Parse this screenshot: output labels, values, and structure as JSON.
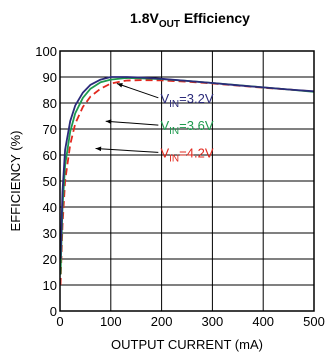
{
  "chart_data": {
    "type": "line",
    "title": {
      "pre": "1.8V",
      "sub": "OUT",
      "post": " Efficiency"
    },
    "xlabel": "OUTPUT CURRENT (mA)",
    "ylabel": "EFFICIENCY (%)",
    "xlim": [
      0,
      500
    ],
    "ylim": [
      0,
      100
    ],
    "xticks": [
      0,
      100,
      200,
      300,
      400,
      500
    ],
    "yticks": [
      0,
      10,
      20,
      30,
      40,
      50,
      60,
      70,
      80,
      90,
      100
    ],
    "grid": true,
    "series": [
      {
        "label": {
          "pre": "V",
          "sub": "IN",
          "post": "=3.2V"
        },
        "color": "#2b2a7a",
        "dash": "solid",
        "x": [
          1,
          5,
          10,
          20,
          30,
          45,
          60,
          80,
          100,
          130,
          160,
          200,
          250,
          300,
          350,
          400,
          450,
          500
        ],
        "y": [
          20,
          46,
          62,
          73,
          79,
          84,
          87,
          89,
          90,
          90,
          89.8,
          89.3,
          88.5,
          87.7,
          86.8,
          86,
          85.2,
          84.5
        ]
      },
      {
        "label": {
          "pre": "V",
          "sub": "IN",
          "post": "=3.6V"
        },
        "color": "#1e9a4e",
        "dash": "solid",
        "x": [
          1,
          5,
          10,
          20,
          30,
          45,
          60,
          80,
          100,
          130,
          160,
          200,
          250,
          300,
          350,
          400,
          450,
          500
        ],
        "y": [
          14,
          40,
          56,
          69,
          76,
          82,
          85.5,
          88,
          89,
          89.6,
          89.5,
          89.2,
          88.5,
          87.7,
          86.9,
          86,
          85.2,
          84.3
        ]
      },
      {
        "label": {
          "pre": "V",
          "sub": "IN",
          "post": "=4.2V"
        },
        "color": "#e2281e",
        "dash": "dashed",
        "x": [
          1,
          5,
          10,
          20,
          30,
          45,
          60,
          80,
          100,
          130,
          160,
          200,
          250,
          300,
          350,
          400,
          450,
          500
        ],
        "y": [
          10,
          33,
          50,
          64,
          72,
          78.5,
          82.5,
          85.5,
          87.5,
          88.6,
          88.8,
          88.7,
          88.2,
          87.5,
          86.7,
          85.9,
          85.2,
          84.4
        ]
      }
    ],
    "annotations": [
      {
        "series": 0,
        "text_x": 250,
        "text_y": 82,
        "point_x": 112,
        "point_y": 87.5
      },
      {
        "series": 1,
        "text_x": 250,
        "text_y": 71.5,
        "point_x": 90,
        "point_y": 73
      },
      {
        "series": 2,
        "text_x": 250,
        "text_y": 61,
        "point_x": 70,
        "point_y": 62.5
      }
    ]
  }
}
